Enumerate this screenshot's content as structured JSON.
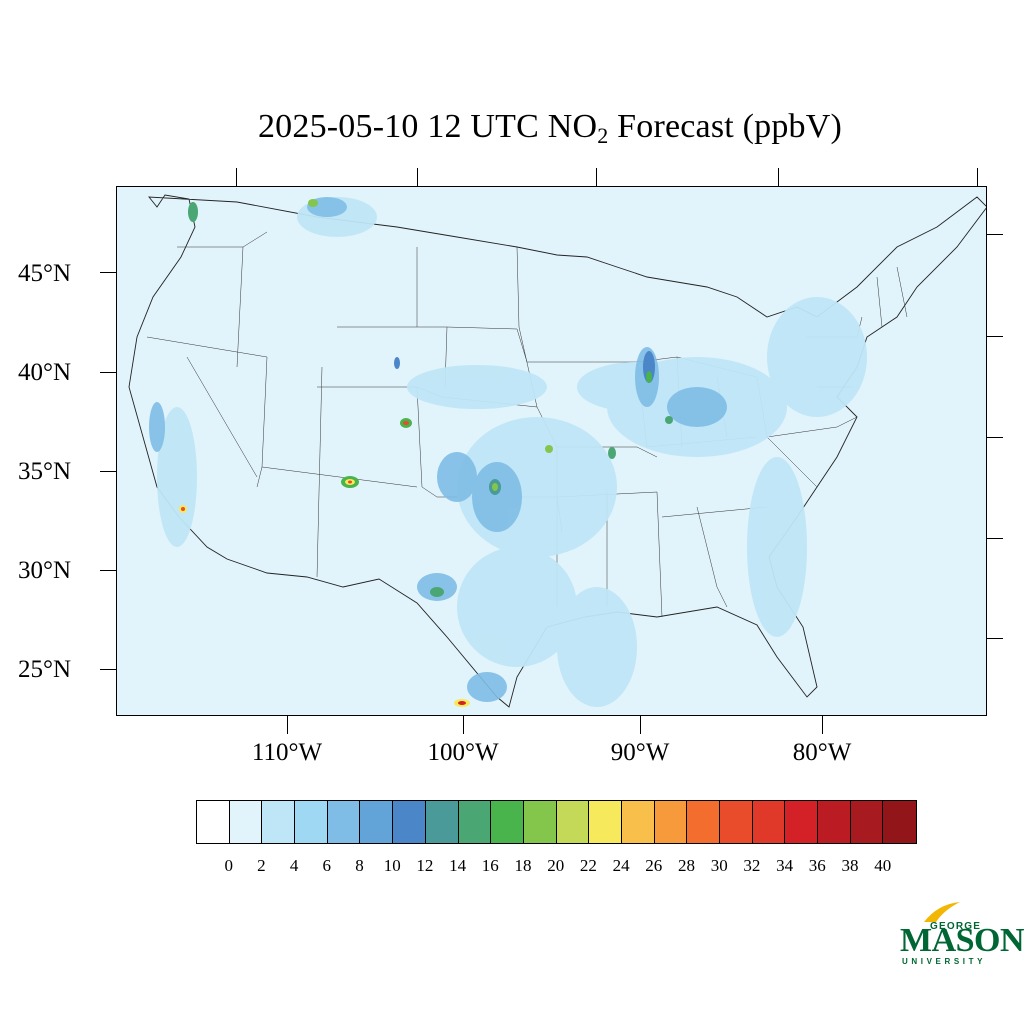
{
  "title": {
    "prefix": "2025-05-10 12 UTC NO",
    "subscript": "2",
    "suffix": " Forecast (ppbV)"
  },
  "map": {
    "background_color": "#e1f3fb",
    "lat_labels": [
      "45°N",
      "40°N",
      "35°N",
      "30°N",
      "25°N"
    ],
    "lon_labels": [
      "110°W",
      "100°W",
      "90°W",
      "80°W"
    ],
    "hotspots_description_levels": "NO2 concentration shown by filled contour colors"
  },
  "colorbar": {
    "colors": [
      "#ffffff",
      "#e1f3fb",
      "#bfe6f7",
      "#9ed8f2",
      "#7fbde6",
      "#62a3d8",
      "#4a86c8",
      "#4a9a9a",
      "#4aa672",
      "#49b34c",
      "#84c54b",
      "#c3d957",
      "#f7e95c",
      "#f8c04a",
      "#f79a3c",
      "#f36d2f",
      "#e84c2a",
      "#e03829",
      "#d42128",
      "#bb1b22",
      "#a71a20",
      "#921519"
    ],
    "labels": [
      "0",
      "2",
      "4",
      "6",
      "8",
      "10",
      "12",
      "14",
      "16",
      "18",
      "20",
      "22",
      "24",
      "26",
      "28",
      "30",
      "32",
      "34",
      "36",
      "38",
      "40"
    ]
  },
  "logo": {
    "line1": "GEORGE",
    "line2": "MASON",
    "line3": "UNIVERSITY",
    "color": "#006633",
    "accent_color": "#f2b705"
  }
}
